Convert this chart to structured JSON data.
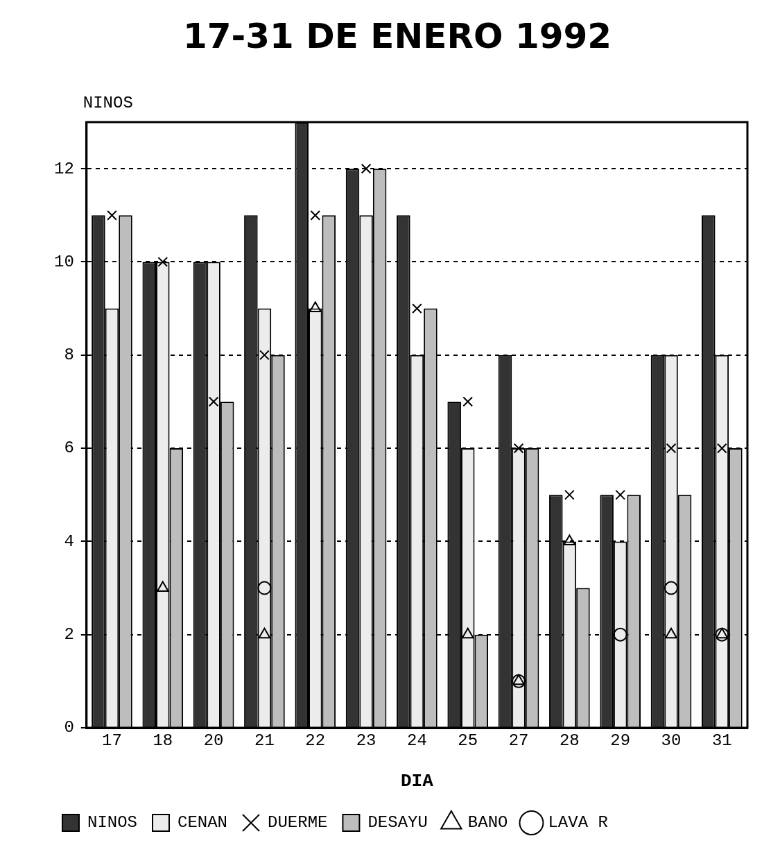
{
  "chart_data": {
    "type": "bar",
    "title": "17-31 DE ENERO 1992",
    "xlabel": "DIA",
    "ylabel": "NINOS",
    "categories": [
      "17",
      "18",
      "20",
      "21",
      "22",
      "23",
      "24",
      "25",
      "27",
      "28",
      "29",
      "30",
      "31"
    ],
    "series": [
      {
        "name": "NINOS",
        "type": "bar",
        "color": "#333333",
        "values": [
          11,
          10,
          10,
          11,
          13,
          12,
          11,
          7,
          8,
          5,
          5,
          8,
          11
        ]
      },
      {
        "name": "CENAN",
        "type": "bar",
        "color": "#ececec",
        "values": [
          9,
          10,
          10,
          9,
          9,
          11,
          8,
          6,
          6,
          4,
          4,
          8,
          8
        ]
      },
      {
        "name": "DUERME",
        "type": "scatter",
        "color": "#000000",
        "marker": "cross",
        "values": [
          11,
          10,
          7,
          8,
          11,
          12,
          9,
          7,
          6,
          5,
          5,
          6,
          6
        ]
      },
      {
        "name": "DESAYU",
        "type": "bar",
        "color": "#bdbdbd",
        "values": [
          11,
          6,
          7,
          8,
          11,
          12,
          9,
          2,
          6,
          3,
          5,
          5,
          6
        ]
      },
      {
        "name": "BANO",
        "type": "scatter",
        "color": "#000000",
        "marker": "triangle",
        "values": [
          null,
          3,
          null,
          2,
          9,
          null,
          null,
          2,
          1,
          4,
          null,
          2,
          2
        ]
      },
      {
        "name": "LAVA R",
        "type": "scatter",
        "color": "#000000",
        "marker": "circle",
        "values": [
          null,
          null,
          null,
          3,
          null,
          null,
          null,
          null,
          1,
          null,
          2,
          3,
          2
        ]
      }
    ],
    "ylim": [
      0,
      13
    ],
    "yticks": [
      0,
      2,
      4,
      6,
      8,
      10,
      12
    ],
    "grid": "y",
    "legend": "bottom"
  }
}
